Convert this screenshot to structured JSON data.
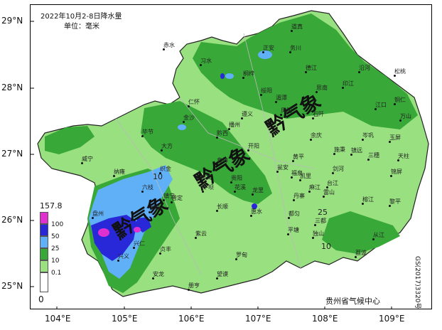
{
  "title": {
    "line1": "2022年10月2-8日降水量",
    "line2": "单位：毫米"
  },
  "y_ticks": [
    "29°N",
    "28°N",
    "27°N",
    "26°N",
    "25°N"
  ],
  "x_ticks": [
    "104°E",
    "105°E",
    "106°E",
    "107°E",
    "108°E",
    "109°E"
  ],
  "legend": {
    "max": "157.8",
    "min": "0",
    "labels": [
      "100",
      "50",
      "25",
      "10",
      "0.1"
    ],
    "colors": [
      "#e030d0",
      "#2828d8",
      "#60b0f8",
      "#38a838",
      "#98e080",
      "#ffffff"
    ]
  },
  "watermark": "黔气象",
  "contour_labels": [
    "25",
    "10",
    "10"
  ],
  "footer": "贵州省气候中心",
  "serial": "GS(2017)3320号",
  "cities": [
    "道真",
    "正安",
    "务川",
    "德江",
    "印江",
    "沿河",
    "松桃",
    "赤水",
    "习水",
    "桐梓",
    "绥阳",
    "凤冈",
    "思南",
    "江口",
    "铜仁",
    "仁怀",
    "遵义",
    "湄潭",
    "石阡",
    "万山",
    "金沙",
    "播州",
    "余庆",
    "岑巩",
    "玉屏",
    "黔西",
    "毕节",
    "开阳",
    "施秉",
    "镇远",
    "三穗",
    "大方",
    "息烽",
    "瓮安",
    "黄平",
    "天柱",
    "威宁",
    "织金",
    "修文",
    "福泉",
    "凯里",
    "剑河",
    "锦屏",
    "纳雍",
    "平坝",
    "贵阳",
    "麻江",
    "台江",
    "六枝",
    "普定",
    "花溪",
    "龙里",
    "丹寨",
    "雷山",
    "榕江",
    "黎平",
    "盘州",
    "关岭",
    "镇宁",
    "长顺",
    "惠水",
    "都匀",
    "三都",
    "从江",
    "兴仁",
    "贞丰",
    "紫云",
    "罗甸",
    "平塘",
    "独山",
    "荔波",
    "兴义",
    "安龙",
    "望谟",
    "册亨"
  ]
}
